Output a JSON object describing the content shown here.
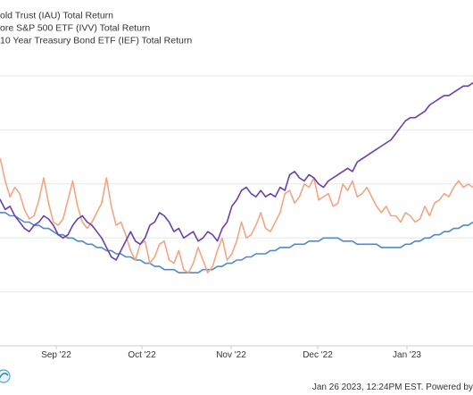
{
  "chart_data": {
    "type": "line",
    "title": "",
    "xlabel": "",
    "ylabel": "",
    "x_ticks": [
      "Sep '22",
      "Oct '22",
      "Nov '22",
      "Dec '22",
      "Jan '23"
    ],
    "grid": true,
    "legend_position": "top-left",
    "series": [
      {
        "name": "old Trust (IAU) Total Return",
        "color": "#f4a582",
        "values": [
          4.5,
          5.5,
          2.0,
          -0.5,
          1.0,
          0.0,
          -2.5,
          -4.0,
          -3.5,
          -1.0,
          2.5,
          -1.5,
          -4.5,
          -5.0,
          -4.0,
          -1.0,
          2.0,
          -2.0,
          -4.5,
          -5.5,
          -4.5,
          -3.0,
          -1.5,
          2.5,
          -2.0,
          -5.0,
          -4.5,
          -6.5,
          -9.0,
          -10.5,
          -8.0,
          -7.5,
          -11.0,
          -10.0,
          -8.0,
          -7.5,
          -10.5,
          -11.0,
          -9.0,
          -12.0,
          -12.5,
          -11.0,
          -8.5,
          -10.5,
          -12.5,
          -11.5,
          -9.0,
          -7.0,
          -10.5,
          -9.5,
          -7.5,
          -4.5,
          -7.0,
          -6.5,
          -5.0,
          -3.0,
          -5.5,
          -6.0,
          -4.5,
          -3.0,
          0.0,
          0.5,
          -1.5,
          -0.5,
          1.5,
          1.0,
          2.5,
          -1.0,
          -0.5,
          0.0,
          -2.0,
          -1.5,
          1.5,
          0.5,
          2.0,
          -0.5,
          0.0,
          1.0,
          -0.5,
          -2.0,
          -3.0,
          -2.0,
          -3.5,
          -3.5,
          -4.5,
          -3.0,
          -3.5,
          -4.5,
          -4.0,
          -2.0,
          -3.5,
          -1.5,
          -1.0,
          0.0,
          -0.5,
          1.0,
          2.0,
          1.0,
          1.5,
          1.0
        ],
        "line_width": 1.6
      },
      {
        "name": "ore S&P 500 ETF (IVV) Total Return",
        "color": "#6a3fb0",
        "values": [
          0.0,
          -1.0,
          -2.5,
          -2.0,
          -3.5,
          -4.5,
          -5.5,
          -6.0,
          -5.0,
          -4.5,
          -3.5,
          -4.0,
          -5.0,
          -6.5,
          -7.0,
          -6.5,
          -5.0,
          -4.0,
          -3.5,
          -4.5,
          -5.0,
          -6.0,
          -7.0,
          -8.5,
          -10.0,
          -10.5,
          -9.0,
          -7.5,
          -6.0,
          -7.5,
          -8.0,
          -7.0,
          -5.0,
          -4.5,
          -3.0,
          -3.5,
          -4.5,
          -6.0,
          -5.5,
          -7.0,
          -6.5,
          -6.0,
          -7.5,
          -7.0,
          -6.0,
          -6.5,
          -7.5,
          -5.5,
          -4.5,
          -2.0,
          -1.0,
          0.5,
          1.0,
          0.0,
          -0.5,
          0.5,
          -0.5,
          0.0,
          -0.5,
          1.0,
          0.5,
          3.0,
          3.5,
          2.5,
          2.0,
          3.0,
          2.5,
          1.5,
          1.0,
          2.0,
          2.5,
          3.0,
          3.5,
          4.0,
          3.5,
          5.0,
          5.5,
          6.0,
          6.5,
          7.0,
          7.5,
          8.0,
          8.5,
          9.5,
          10.5,
          11.5,
          12.0,
          12.0,
          12.5,
          13.0,
          14.0,
          14.5,
          15.0,
          15.5,
          15.5,
          16.0,
          16.5,
          17.0,
          17.0,
          17.5
        ],
        "line_width": 1.6
      },
      {
        "name": "10 Year Treasury Bond ETF (IEF) Total Return",
        "color": "#4f8bc9",
        "values": [
          -2.5,
          -3.0,
          -3.0,
          -3.5,
          -3.5,
          -4.0,
          -4.5,
          -4.5,
          -5.0,
          -5.0,
          -5.5,
          -5.5,
          -6.0,
          -6.5,
          -6.5,
          -7.0,
          -7.0,
          -7.5,
          -7.5,
          -8.0,
          -8.0,
          -8.5,
          -8.5,
          -9.0,
          -9.0,
          -9.5,
          -9.5,
          -10.0,
          -10.0,
          -10.5,
          -10.5,
          -11.0,
          -11.0,
          -11.5,
          -11.5,
          -12.0,
          -12.0,
          -12.0,
          -12.5,
          -12.5,
          -12.5,
          -12.5,
          -12.5,
          -12.0,
          -12.0,
          -12.0,
          -11.5,
          -11.5,
          -11.0,
          -11.0,
          -10.5,
          -10.5,
          -10.0,
          -10.0,
          -9.5,
          -9.5,
          -9.5,
          -9.0,
          -9.0,
          -8.5,
          -8.5,
          -8.5,
          -8.0,
          -8.0,
          -8.0,
          -7.5,
          -7.5,
          -7.5,
          -7.0,
          -7.0,
          -7.0,
          -7.0,
          -7.5,
          -7.5,
          -7.5,
          -8.0,
          -8.0,
          -8.0,
          -8.0,
          -8.0,
          -8.5,
          -8.5,
          -8.5,
          -8.5,
          -8.5,
          -8.0,
          -8.0,
          -7.5,
          -7.5,
          -7.0,
          -7.0,
          -6.5,
          -6.5,
          -6.0,
          -6.0,
          -5.5,
          -5.5,
          -5.0,
          -5.0,
          -4.5
        ],
        "line_width": 1.6
      }
    ],
    "ylim": [
      -16,
      20
    ]
  },
  "footer": {
    "timestamp": "Jan 26 2023, 12:24PM EST. Powered by"
  }
}
